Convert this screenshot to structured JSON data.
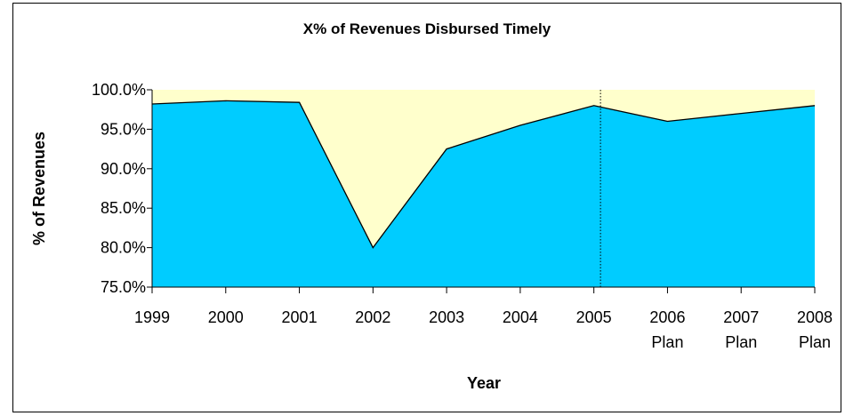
{
  "chart_data": {
    "type": "area",
    "title": "X% of Revenues Disbursed Timely",
    "xlabel": "Year",
    "ylabel": "% of Revenues",
    "categories": [
      {
        "line1": "1999",
        "line2": ""
      },
      {
        "line1": "2000",
        "line2": ""
      },
      {
        "line1": "2001",
        "line2": ""
      },
      {
        "line1": "2002",
        "line2": ""
      },
      {
        "line1": "2003",
        "line2": ""
      },
      {
        "line1": "2004",
        "line2": ""
      },
      {
        "line1": "2005",
        "line2": ""
      },
      {
        "line1": "2006",
        "line2": "Plan"
      },
      {
        "line1": "2007",
        "line2": "Plan"
      },
      {
        "line1": "2008",
        "line2": "Plan"
      }
    ],
    "series": [
      {
        "values": [
          98.2,
          98.6,
          98.4,
          80.0,
          92.5,
          95.5,
          98.0,
          96.0,
          97.0,
          98.0
        ],
        "color": "#00CCFF"
      }
    ],
    "ylim": [
      75.0,
      100.0
    ],
    "yticks": [
      "75.0%",
      "80.0%",
      "85.0%",
      "90.0%",
      "95.0%",
      "100.0%"
    ],
    "ytick_values": [
      75,
      80,
      85,
      90,
      95,
      100
    ],
    "background_fill": "#FFFFCC",
    "divider_after_category": "2005",
    "grid": false,
    "legend": "none"
  }
}
